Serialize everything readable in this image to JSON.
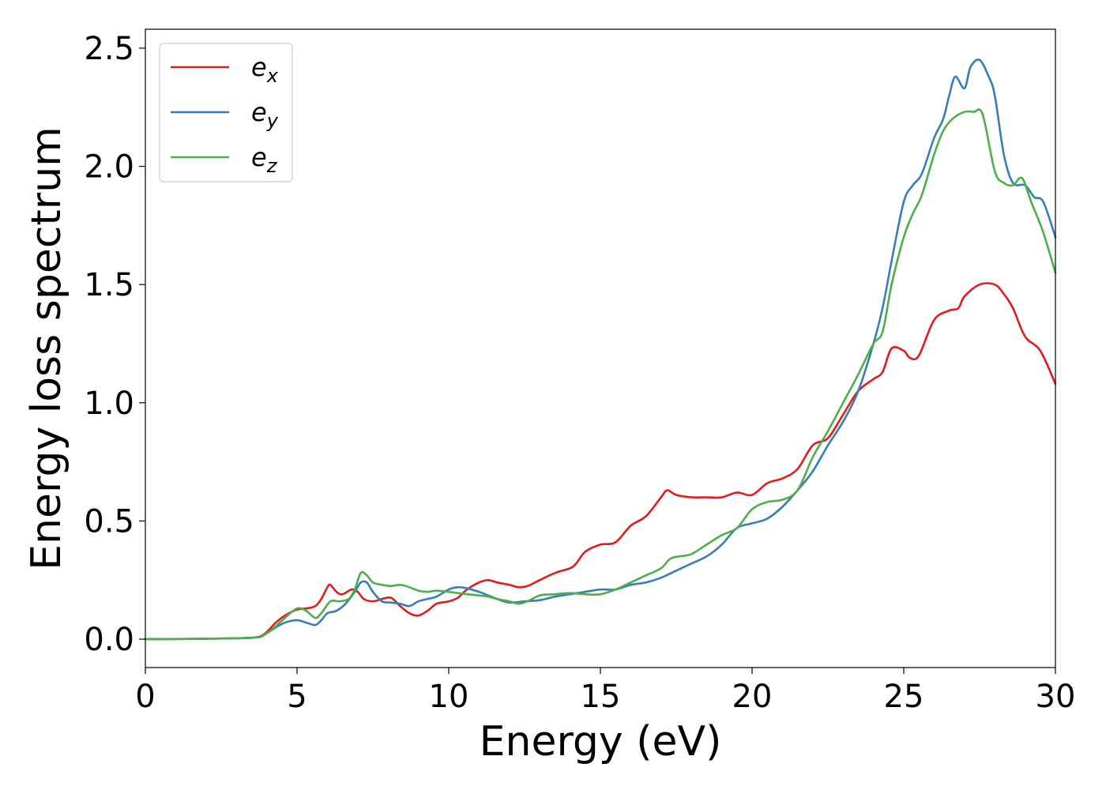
{
  "chart_data": {
    "type": "line",
    "xlabel": "Energy (eV)",
    "ylabel": "Energy loss spectrum",
    "xlim": [
      0,
      30
    ],
    "ylim": [
      -0.12,
      2.58
    ],
    "xticks": [
      0,
      5,
      10,
      15,
      20,
      25,
      30
    ],
    "xtick_labels": [
      "0",
      "5",
      "10",
      "15",
      "20",
      "25",
      "30"
    ],
    "yticks": [
      0.0,
      0.5,
      1.0,
      1.5,
      2.0,
      2.5
    ],
    "ytick_labels": [
      "0.0",
      "0.5",
      "1.0",
      "1.5",
      "2.0",
      "2.5"
    ],
    "grid": false,
    "legend_position": "top-left",
    "series": [
      {
        "name": "e",
        "subscript": "x",
        "color": "#e41a1c",
        "x": [
          0,
          2,
          3,
          3.5,
          3.8,
          4.0,
          4.3,
          4.6,
          5.0,
          5.3,
          5.6,
          5.8,
          6.0,
          6.1,
          6.3,
          6.5,
          6.8,
          7.0,
          7.2,
          7.5,
          7.8,
          8.1,
          8.4,
          8.7,
          9.0,
          9.3,
          9.6,
          10.0,
          10.3,
          10.6,
          11.0,
          11.3,
          11.6,
          12.0,
          12.3,
          12.6,
          13.0,
          13.5,
          14.0,
          14.2,
          14.5,
          15.0,
          15.5,
          16.0,
          16.5,
          17.0,
          17.2,
          17.5,
          18.0,
          18.5,
          19.0,
          19.5,
          20.0,
          20.5,
          21.0,
          21.5,
          22.0,
          22.5,
          23.0,
          23.5,
          24.0,
          24.3,
          24.6,
          25.0,
          25.2,
          25.5,
          26.0,
          26.5,
          26.8,
          27.0,
          27.5,
          28.0,
          28.3,
          28.6,
          29.0,
          29.5,
          30.0
        ],
        "values": [
          0.0,
          0.002,
          0.004,
          0.006,
          0.012,
          0.03,
          0.07,
          0.1,
          0.125,
          0.13,
          0.14,
          0.17,
          0.22,
          0.23,
          0.2,
          0.19,
          0.21,
          0.2,
          0.17,
          0.16,
          0.17,
          0.175,
          0.14,
          0.11,
          0.1,
          0.12,
          0.15,
          0.16,
          0.175,
          0.21,
          0.24,
          0.25,
          0.24,
          0.23,
          0.22,
          0.225,
          0.25,
          0.28,
          0.3,
          0.32,
          0.37,
          0.4,
          0.41,
          0.48,
          0.52,
          0.6,
          0.63,
          0.61,
          0.6,
          0.6,
          0.6,
          0.62,
          0.61,
          0.66,
          0.68,
          0.72,
          0.82,
          0.85,
          0.95,
          1.05,
          1.1,
          1.13,
          1.23,
          1.22,
          1.19,
          1.2,
          1.35,
          1.39,
          1.4,
          1.45,
          1.5,
          1.5,
          1.46,
          1.4,
          1.28,
          1.22,
          1.08
        ]
      },
      {
        "name": "e",
        "subscript": "y",
        "color": "#377eb8",
        "x": [
          0,
          2,
          3,
          3.5,
          3.8,
          4.0,
          4.3,
          4.6,
          5.0,
          5.3,
          5.6,
          5.8,
          6.0,
          6.3,
          6.6,
          6.9,
          7.1,
          7.3,
          7.5,
          7.8,
          8.1,
          8.4,
          8.7,
          9.0,
          9.3,
          9.6,
          10.0,
          10.3,
          10.6,
          11.0,
          11.3,
          11.6,
          12.0,
          12.5,
          13.0,
          13.5,
          14.0,
          14.5,
          15.0,
          15.5,
          16.0,
          16.5,
          17.0,
          17.5,
          18.0,
          18.5,
          19.0,
          19.5,
          20.0,
          20.5,
          21.0,
          21.5,
          22.0,
          22.5,
          23.0,
          23.5,
          24.0,
          24.3,
          24.6,
          25.0,
          25.3,
          25.6,
          26.0,
          26.3,
          26.5,
          26.7,
          27.0,
          27.2,
          27.5,
          27.8,
          28.0,
          28.3,
          28.6,
          29.0,
          29.3,
          29.6,
          30.0
        ],
        "values": [
          0.0,
          0.002,
          0.004,
          0.006,
          0.01,
          0.025,
          0.05,
          0.07,
          0.08,
          0.07,
          0.06,
          0.08,
          0.11,
          0.12,
          0.15,
          0.2,
          0.24,
          0.24,
          0.2,
          0.16,
          0.155,
          0.15,
          0.14,
          0.16,
          0.17,
          0.18,
          0.21,
          0.22,
          0.215,
          0.2,
          0.185,
          0.17,
          0.155,
          0.16,
          0.165,
          0.18,
          0.19,
          0.2,
          0.21,
          0.21,
          0.23,
          0.24,
          0.26,
          0.29,
          0.32,
          0.35,
          0.4,
          0.47,
          0.49,
          0.51,
          0.56,
          0.63,
          0.71,
          0.82,
          0.92,
          1.05,
          1.25,
          1.4,
          1.6,
          1.85,
          1.92,
          1.97,
          2.12,
          2.2,
          2.3,
          2.38,
          2.33,
          2.42,
          2.45,
          2.38,
          2.3,
          2.05,
          1.93,
          1.92,
          1.87,
          1.85,
          1.7
        ]
      },
      {
        "name": "e",
        "subscript": "z",
        "color": "#4daf4a",
        "x": [
          0,
          2,
          3,
          3.5,
          3.8,
          4.0,
          4.3,
          4.6,
          5.0,
          5.3,
          5.6,
          5.8,
          6.1,
          6.4,
          6.7,
          6.9,
          7.1,
          7.3,
          7.5,
          7.8,
          8.1,
          8.4,
          8.7,
          9.0,
          9.3,
          9.6,
          10.0,
          10.3,
          10.6,
          11.0,
          11.3,
          11.6,
          12.0,
          12.3,
          12.6,
          13.0,
          13.5,
          14.0,
          14.5,
          15.0,
          15.5,
          16.0,
          16.5,
          17.0,
          17.3,
          17.6,
          18.0,
          18.5,
          19.0,
          19.5,
          20.0,
          20.5,
          21.0,
          21.5,
          22.0,
          22.5,
          23.0,
          23.5,
          24.0,
          24.3,
          24.6,
          25.0,
          25.3,
          25.6,
          26.0,
          26.3,
          26.6,
          27.0,
          27.3,
          27.6,
          28.0,
          28.3,
          28.6,
          28.9,
          29.2,
          29.6,
          30.0
        ],
        "values": [
          0.0,
          0.002,
          0.004,
          0.006,
          0.01,
          0.025,
          0.055,
          0.09,
          0.13,
          0.12,
          0.09,
          0.11,
          0.16,
          0.16,
          0.17,
          0.21,
          0.28,
          0.27,
          0.24,
          0.23,
          0.225,
          0.23,
          0.22,
          0.205,
          0.2,
          0.205,
          0.2,
          0.195,
          0.19,
          0.185,
          0.18,
          0.17,
          0.16,
          0.15,
          0.16,
          0.185,
          0.19,
          0.195,
          0.19,
          0.19,
          0.21,
          0.24,
          0.27,
          0.3,
          0.34,
          0.35,
          0.36,
          0.4,
          0.44,
          0.47,
          0.55,
          0.58,
          0.59,
          0.63,
          0.77,
          0.88,
          1.0,
          1.12,
          1.25,
          1.3,
          1.5,
          1.7,
          1.8,
          1.88,
          2.05,
          2.15,
          2.2,
          2.23,
          2.23,
          2.22,
          1.98,
          1.93,
          1.92,
          1.95,
          1.85,
          1.72,
          1.55
        ]
      }
    ]
  }
}
